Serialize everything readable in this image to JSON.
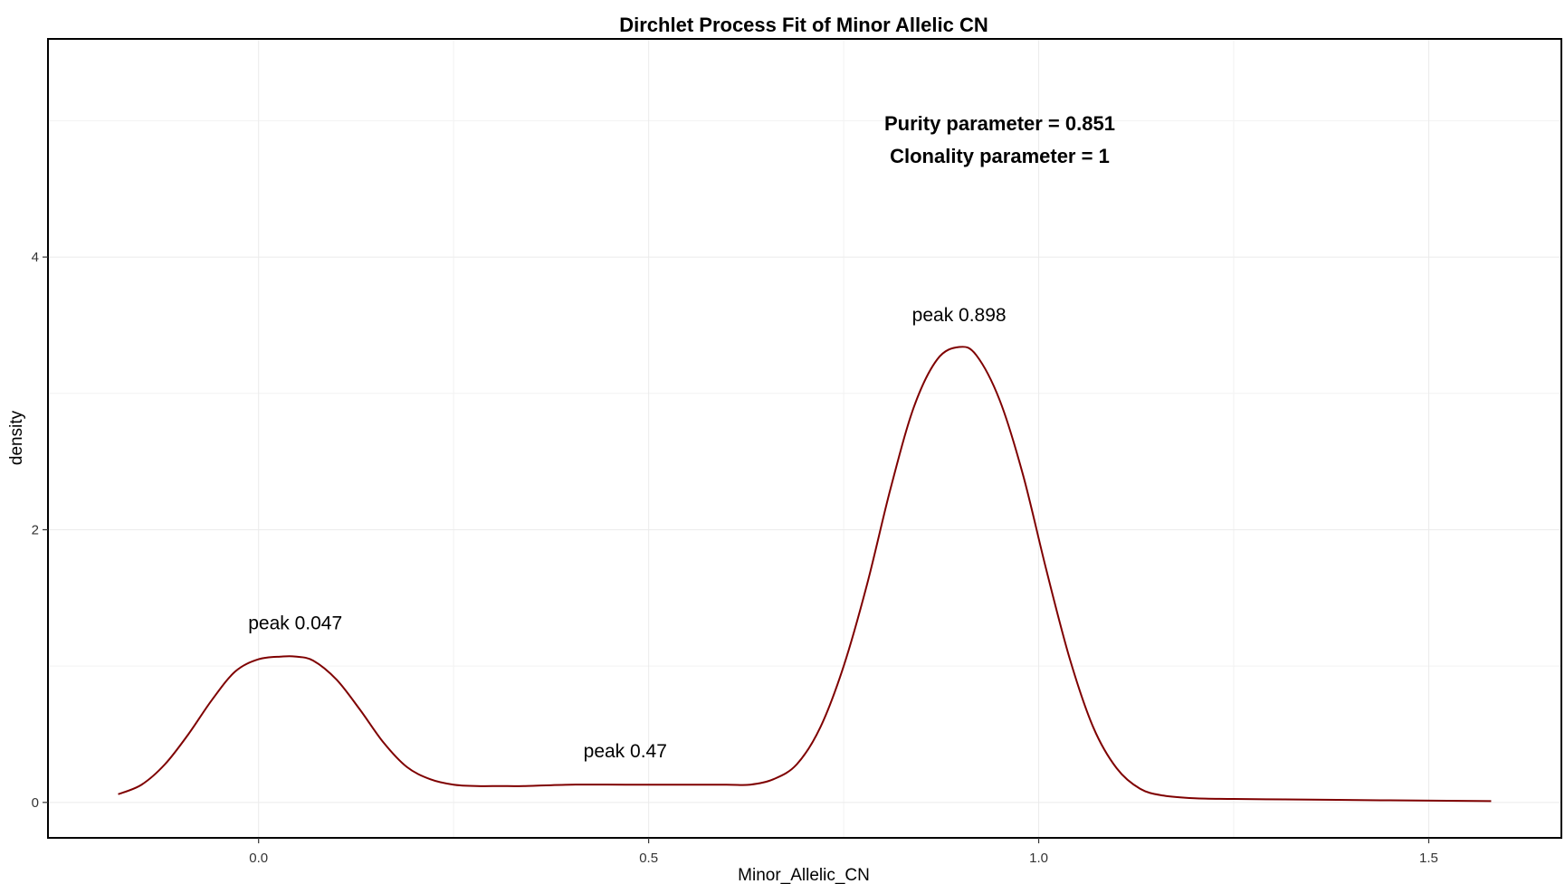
{
  "chart_data": {
    "type": "line",
    "title": "Dirchlet Process Fit of Minor Allelic CN",
    "xlabel": "Minor_Allelic_CN",
    "ylabel": "density",
    "xlim": [
      -0.27,
      1.67
    ],
    "ylim": [
      -0.26,
      5.6
    ],
    "x_ticks": [
      0.0,
      0.5,
      1.0,
      1.5
    ],
    "x_tick_labels": [
      "0.0",
      "0.5",
      "1.0",
      "1.5"
    ],
    "y_ticks": [
      0,
      2,
      4
    ],
    "y_tick_labels": [
      "0",
      "2",
      "4"
    ],
    "grid": true,
    "legend": "none",
    "series": [
      {
        "color": "#7f0000",
        "x": [
          -0.18,
          -0.15,
          -0.12,
          -0.09,
          -0.06,
          -0.03,
          0.0,
          0.03,
          0.047,
          0.07,
          0.1,
          0.13,
          0.16,
          0.19,
          0.22,
          0.25,
          0.28,
          0.31,
          0.34,
          0.4,
          0.47,
          0.54,
          0.6,
          0.63,
          0.66,
          0.69,
          0.72,
          0.75,
          0.78,
          0.81,
          0.84,
          0.87,
          0.898,
          0.92,
          0.95,
          0.98,
          1.01,
          1.04,
          1.07,
          1.1,
          1.13,
          1.16,
          1.2,
          1.25,
          1.35,
          1.45,
          1.58
        ],
        "y": [
          0.06,
          0.13,
          0.28,
          0.5,
          0.75,
          0.96,
          1.05,
          1.07,
          1.07,
          1.04,
          0.9,
          0.68,
          0.44,
          0.26,
          0.17,
          0.13,
          0.12,
          0.12,
          0.12,
          0.13,
          0.13,
          0.13,
          0.13,
          0.13,
          0.17,
          0.28,
          0.55,
          1.0,
          1.6,
          2.3,
          2.9,
          3.25,
          3.34,
          3.28,
          2.95,
          2.4,
          1.7,
          1.05,
          0.55,
          0.25,
          0.1,
          0.05,
          0.03,
          0.025,
          0.02,
          0.015,
          0.01
        ]
      }
    ],
    "annotations": {
      "peaks": [
        {
          "label": "peak 0.047",
          "x": 0.047,
          "y": 1.27
        },
        {
          "label": "peak 0.47",
          "x": 0.47,
          "y": 0.33
        },
        {
          "label": "peak 0.898",
          "x": 0.898,
          "y": 3.53
        }
      ],
      "parameters": [
        {
          "label": "Purity parameter = 0.851",
          "x": 0.95,
          "y": 4.93
        },
        {
          "label": "Clonality parameter = 1",
          "x": 0.95,
          "y": 4.69
        }
      ]
    }
  }
}
